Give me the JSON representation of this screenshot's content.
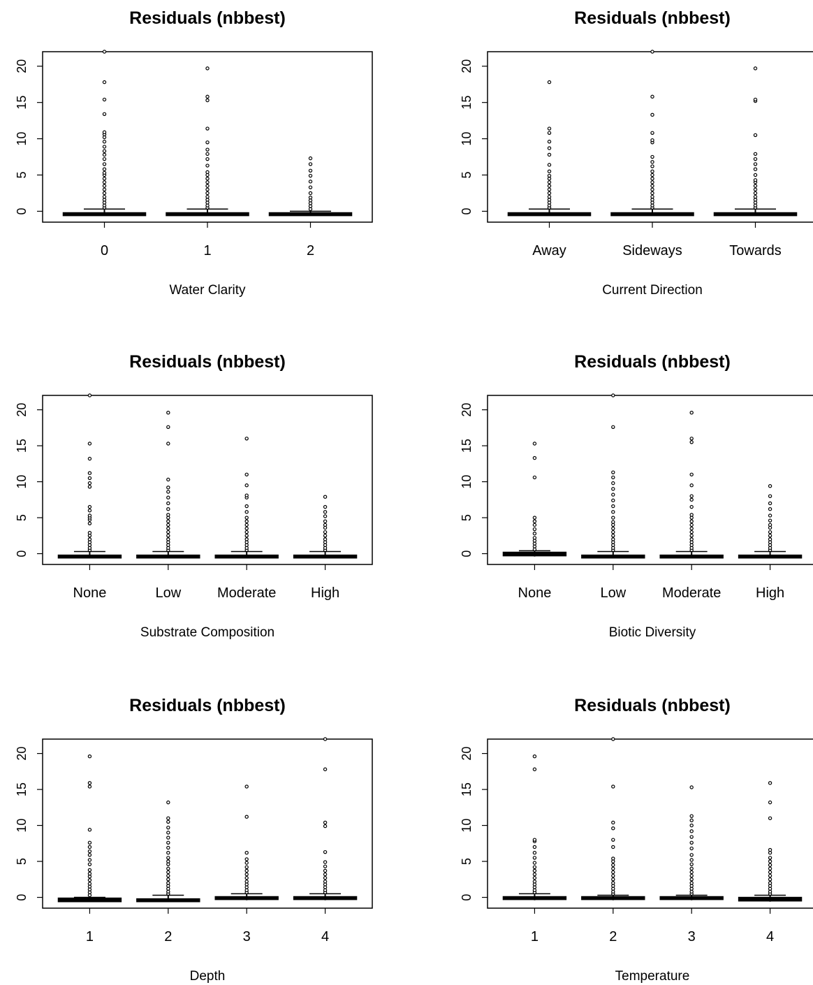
{
  "chart_data": [
    {
      "type": "boxplot",
      "title": "Residuals (nbbest)",
      "xlabel": "Water Clarity",
      "ylabel": "",
      "ylim": [
        -1.5,
        22
      ],
      "yticks": [
        0,
        5,
        10,
        15,
        20
      ],
      "categories": [
        "0",
        "1",
        "2"
      ],
      "boxes": [
        {
          "category": "0",
          "q1": -0.6,
          "median": -0.4,
          "q3": -0.2,
          "whisker_low": -0.6,
          "whisker_high": 0.3,
          "outliers": [
            0.5,
            0.8,
            1.2,
            1.6,
            2.0,
            2.5,
            3.0,
            3.5,
            4.0,
            4.5,
            5.0,
            5.3,
            5.8,
            6.5,
            7.2,
            7.8,
            8.3,
            8.9,
            9.6,
            10.2,
            10.6,
            10.9,
            13.4,
            15.4,
            17.8,
            22.0
          ]
        },
        {
          "category": "1",
          "q1": -0.6,
          "median": -0.4,
          "q3": -0.2,
          "whisker_low": -0.6,
          "whisker_high": 0.3,
          "outliers": [
            0.5,
            0.8,
            1.2,
            1.6,
            2.0,
            2.5,
            3.0,
            3.5,
            4.0,
            4.5,
            5.0,
            5.4,
            6.3,
            7.2,
            7.9,
            8.5,
            9.5,
            11.4,
            15.3,
            15.8,
            19.7
          ]
        },
        {
          "category": "2",
          "q1": -0.6,
          "median": -0.4,
          "q3": -0.2,
          "whisker_low": -0.6,
          "whisker_high": 0.0,
          "outliers": [
            0.3,
            0.7,
            1.1,
            1.5,
            1.9,
            2.5,
            3.3,
            4.1,
            4.9,
            5.6,
            6.5,
            7.3
          ]
        }
      ]
    },
    {
      "type": "boxplot",
      "title": "Residuals (nbbest)",
      "xlabel": "Current Direction",
      "ylabel": "",
      "ylim": [
        -1.5,
        22
      ],
      "yticks": [
        0,
        5,
        10,
        15,
        20
      ],
      "categories": [
        "Away",
        "Sideways",
        "Towards"
      ],
      "boxes": [
        {
          "category": "Away",
          "q1": -0.6,
          "median": -0.4,
          "q3": -0.2,
          "whisker_low": -0.6,
          "whisker_high": 0.3,
          "outliers": [
            0.5,
            0.8,
            1.2,
            1.6,
            2.0,
            2.5,
            3.0,
            3.5,
            4.0,
            4.5,
            4.9,
            5.5,
            6.4,
            7.8,
            8.7,
            9.6,
            10.8,
            11.4,
            17.8
          ]
        },
        {
          "category": "Sideways",
          "q1": -0.6,
          "median": -0.4,
          "q3": -0.2,
          "whisker_low": -0.6,
          "whisker_high": 0.3,
          "outliers": [
            0.5,
            0.8,
            1.2,
            1.6,
            2.0,
            2.5,
            3.0,
            3.5,
            4.0,
            4.5,
            5.0,
            5.5,
            6.2,
            6.8,
            7.5,
            9.5,
            9.8,
            10.8,
            13.3,
            15.8,
            22.0
          ]
        },
        {
          "category": "Towards",
          "q1": -0.6,
          "median": -0.4,
          "q3": -0.2,
          "whisker_low": -0.6,
          "whisker_high": 0.3,
          "outliers": [
            0.5,
            0.8,
            1.2,
            1.6,
            2.0,
            2.5,
            3.0,
            3.5,
            4.0,
            4.3,
            5.0,
            5.8,
            6.5,
            7.2,
            7.9,
            10.5,
            15.2,
            15.4,
            19.7
          ]
        }
      ]
    },
    {
      "type": "boxplot",
      "title": "Residuals (nbbest)",
      "xlabel": "Substrate Composition",
      "ylabel": "",
      "ylim": [
        -1.5,
        22
      ],
      "yticks": [
        0,
        5,
        10,
        15,
        20
      ],
      "categories": [
        "None",
        "Low",
        "Moderate",
        "High"
      ],
      "boxes": [
        {
          "category": "None",
          "q1": -0.6,
          "median": -0.4,
          "q3": -0.2,
          "whisker_low": -0.6,
          "whisker_high": 0.3,
          "outliers": [
            0.5,
            0.8,
            1.2,
            1.6,
            2.0,
            2.5,
            2.9,
            4.2,
            4.7,
            5.0,
            5.3,
            6.0,
            6.5,
            9.3,
            9.8,
            10.5,
            11.2,
            13.2,
            15.3,
            22.0
          ]
        },
        {
          "category": "Low",
          "q1": -0.6,
          "median": -0.4,
          "q3": -0.2,
          "whisker_low": -0.6,
          "whisker_high": 0.3,
          "outliers": [
            0.5,
            0.8,
            1.2,
            1.6,
            2.0,
            2.5,
            3.0,
            3.5,
            4.0,
            4.5,
            5.0,
            5.4,
            6.2,
            7.0,
            7.8,
            8.6,
            9.2,
            10.3,
            15.3,
            17.6,
            19.6
          ]
        },
        {
          "category": "Moderate",
          "q1": -0.6,
          "median": -0.4,
          "q3": -0.2,
          "whisker_low": -0.6,
          "whisker_high": 0.3,
          "outliers": [
            0.5,
            0.8,
            1.2,
            1.6,
            2.0,
            2.5,
            3.0,
            3.5,
            4.0,
            4.5,
            5.0,
            5.8,
            6.6,
            7.8,
            8.1,
            9.5,
            11.0,
            16.0
          ]
        },
        {
          "category": "High",
          "q1": -0.6,
          "median": -0.4,
          "q3": -0.2,
          "whisker_low": -0.6,
          "whisker_high": 0.3,
          "outliers": [
            0.5,
            0.8,
            1.2,
            1.6,
            2.0,
            2.5,
            3.0,
            3.6,
            4.0,
            4.5,
            5.2,
            5.8,
            6.5,
            7.9
          ]
        }
      ]
    },
    {
      "type": "boxplot",
      "title": "Residuals (nbbest)",
      "xlabel": "Biotic Diversity",
      "ylabel": "",
      "ylim": [
        -1.5,
        22
      ],
      "yticks": [
        0,
        5,
        10,
        15,
        20
      ],
      "categories": [
        "None",
        "Low",
        "Moderate",
        "High"
      ],
      "boxes": [
        {
          "category": "None",
          "q1": -0.3,
          "median": 0.0,
          "q3": 0.2,
          "whisker_low": -0.4,
          "whisker_high": 0.4,
          "outliers": [
            0.6,
            1.0,
            1.4,
            1.8,
            2.2,
            2.8,
            3.4,
            4.0,
            4.5,
            5.0,
            10.6,
            13.3,
            15.3
          ]
        },
        {
          "category": "Low",
          "q1": -0.6,
          "median": -0.4,
          "q3": -0.2,
          "whisker_low": -0.6,
          "whisker_high": 0.3,
          "outliers": [
            0.5,
            0.8,
            1.2,
            1.6,
            2.0,
            2.5,
            3.0,
            3.5,
            4.0,
            4.4,
            5.0,
            5.8,
            6.6,
            7.4,
            8.2,
            9.0,
            9.8,
            10.6,
            11.3,
            17.6,
            22.0
          ]
        },
        {
          "category": "Moderate",
          "q1": -0.6,
          "median": -0.4,
          "q3": -0.2,
          "whisker_low": -0.6,
          "whisker_high": 0.3,
          "outliers": [
            0.5,
            0.8,
            1.2,
            1.6,
            2.0,
            2.5,
            3.0,
            3.5,
            4.0,
            4.5,
            5.0,
            5.4,
            6.5,
            7.5,
            8.0,
            9.5,
            11.0,
            15.5,
            16.0,
            19.6
          ]
        },
        {
          "category": "High",
          "q1": -0.6,
          "median": -0.4,
          "q3": -0.2,
          "whisker_low": -0.6,
          "whisker_high": 0.3,
          "outliers": [
            0.5,
            0.8,
            1.2,
            1.6,
            2.0,
            2.5,
            3.0,
            3.6,
            4.0,
            4.6,
            5.3,
            6.2,
            7.0,
            8.0,
            9.4
          ]
        }
      ]
    },
    {
      "type": "boxplot",
      "title": "Residuals (nbbest)",
      "xlabel": "Depth",
      "ylabel": "",
      "ylim": [
        -1.5,
        22
      ],
      "yticks": [
        0,
        5,
        10,
        15,
        20
      ],
      "categories": [
        "1",
        "2",
        "3",
        "4"
      ],
      "boxes": [
        {
          "category": "1",
          "q1": -0.6,
          "median": -0.3,
          "q3": -0.1,
          "whisker_low": -0.6,
          "whisker_high": 0.0,
          "outliers": [
            0.3,
            0.7,
            1.1,
            1.5,
            1.9,
            2.4,
            2.9,
            3.3,
            3.8,
            4.6,
            5.2,
            5.9,
            6.4,
            7.0,
            7.6,
            9.4,
            15.4,
            15.9,
            19.6
          ]
        },
        {
          "category": "2",
          "q1": -0.6,
          "median": -0.4,
          "q3": -0.2,
          "whisker_low": -0.6,
          "whisker_high": 0.3,
          "outliers": [
            0.5,
            0.8,
            1.2,
            1.6,
            2.0,
            2.5,
            3.0,
            3.5,
            4.0,
            4.6,
            5.0,
            5.5,
            6.2,
            6.9,
            7.6,
            8.3,
            9.0,
            9.7,
            10.5,
            11.0,
            13.2
          ]
        },
        {
          "category": "3",
          "q1": -0.3,
          "median": -0.1,
          "q3": 0.1,
          "whisker_low": -0.4,
          "whisker_high": 0.5,
          "outliers": [
            0.7,
            1.0,
            1.4,
            1.8,
            2.2,
            2.7,
            3.2,
            3.7,
            4.2,
            4.8,
            5.3,
            6.2,
            11.2,
            15.4
          ]
        },
        {
          "category": "4",
          "q1": -0.3,
          "median": -0.1,
          "q3": 0.1,
          "whisker_low": -0.4,
          "whisker_high": 0.5,
          "outliers": [
            0.7,
            1.0,
            1.4,
            1.8,
            2.2,
            2.7,
            3.2,
            3.7,
            4.3,
            4.9,
            6.3,
            9.9,
            10.4,
            17.8,
            22.0
          ]
        }
      ]
    },
    {
      "type": "boxplot",
      "title": "Residuals (nbbest)",
      "xlabel": "Temperature",
      "ylabel": "",
      "ylim": [
        -1.5,
        22
      ],
      "yticks": [
        0,
        5,
        10,
        15,
        20
      ],
      "categories": [
        "1",
        "2",
        "3",
        "4"
      ],
      "boxes": [
        {
          "category": "1",
          "q1": -0.3,
          "median": -0.1,
          "q3": 0.1,
          "whisker_low": -0.4,
          "whisker_high": 0.5,
          "outliers": [
            0.7,
            1.0,
            1.4,
            1.8,
            2.2,
            2.7,
            3.2,
            3.7,
            4.2,
            4.8,
            5.5,
            6.2,
            7.0,
            7.8,
            8.0,
            17.8,
            19.6
          ]
        },
        {
          "category": "2",
          "q1": -0.3,
          "median": -0.1,
          "q3": 0.1,
          "whisker_low": -0.4,
          "whisker_high": 0.3,
          "outliers": [
            0.5,
            0.8,
            1.2,
            1.6,
            2.0,
            2.5,
            3.0,
            3.5,
            4.0,
            4.5,
            5.0,
            5.4,
            7.0,
            8.0,
            9.6,
            10.4,
            15.4,
            22.0
          ]
        },
        {
          "category": "3",
          "q1": -0.3,
          "median": -0.1,
          "q3": 0.1,
          "whisker_low": -0.4,
          "whisker_high": 0.3,
          "outliers": [
            0.5,
            0.8,
            1.2,
            1.6,
            2.0,
            2.5,
            3.0,
            3.5,
            4.0,
            4.6,
            5.2,
            5.9,
            6.8,
            7.6,
            8.4,
            9.2,
            10.0,
            10.7,
            11.3,
            15.3
          ]
        },
        {
          "category": "4",
          "q1": -0.5,
          "median": -0.3,
          "q3": 0.0,
          "whisker_low": -0.6,
          "whisker_high": 0.3,
          "outliers": [
            0.5,
            0.8,
            1.2,
            1.6,
            2.0,
            2.5,
            3.0,
            3.5,
            4.0,
            4.5,
            5.0,
            5.5,
            6.2,
            6.6,
            11.0,
            13.2,
            15.9
          ]
        }
      ]
    }
  ]
}
